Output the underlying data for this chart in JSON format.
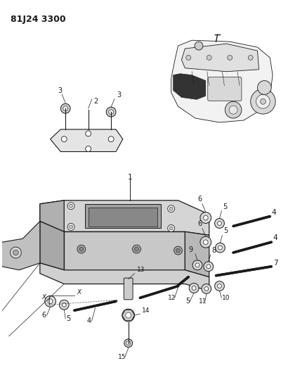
{
  "title": "81J24 3300",
  "bg_color": "#ffffff",
  "lc": "#1a1a1a",
  "gray_light": "#e8e8e8",
  "gray_mid": "#cccccc",
  "gray_dark": "#aaaaaa",
  "white": "#ffffff",
  "black": "#111111"
}
